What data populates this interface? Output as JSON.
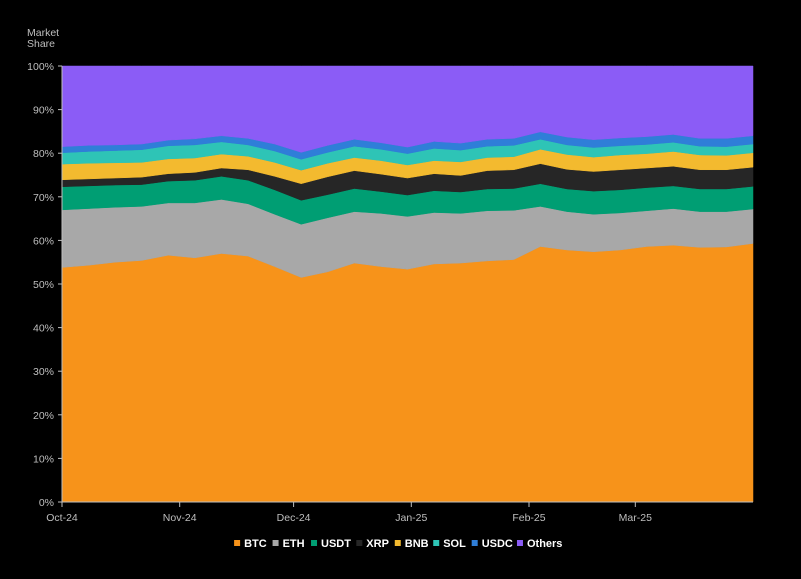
{
  "chart_data": {
    "type": "area",
    "stacked": true,
    "ylabel": "Market Share",
    "ylabel_lines": [
      "Market",
      "Share"
    ],
    "ylim": [
      0,
      100
    ],
    "yticks": [
      0,
      10,
      20,
      30,
      40,
      50,
      60,
      70,
      80,
      90,
      100
    ],
    "ytick_labels": [
      "0%",
      "10%",
      "20%",
      "30%",
      "40%",
      "50%",
      "60%",
      "70%",
      "80%",
      "90%",
      "100%"
    ],
    "x_range": [
      0,
      182
    ],
    "x_ticks": [
      {
        "label": "Oct-24",
        "day": 0
      },
      {
        "label": "Nov-24",
        "day": 31
      },
      {
        "label": "Dec-24",
        "day": 61
      },
      {
        "label": "Jan-25",
        "day": 92
      },
      {
        "label": "Feb-25",
        "day": 123
      },
      {
        "label": "Mar-25",
        "day": 151
      }
    ],
    "x_day": [
      0,
      7,
      14,
      21,
      28,
      35,
      42,
      49,
      56,
      63,
      70,
      77,
      84,
      91,
      98,
      105,
      112,
      119,
      126,
      133,
      140,
      147,
      154,
      161,
      168,
      175,
      182
    ],
    "grid": false,
    "legend_position": "bottom",
    "series": [
      {
        "name": "BTC",
        "color": "#f7931a",
        "values": [
          53.8,
          54.3,
          55.0,
          55.4,
          56.6,
          56.0,
          57.0,
          56.4,
          54.0,
          51.5,
          52.8,
          54.8,
          54.0,
          53.4,
          54.6,
          54.8,
          55.3,
          55.6,
          58.6,
          57.8,
          57.4,
          57.8,
          58.6,
          58.9,
          58.4,
          58.5,
          59.3
        ]
      },
      {
        "name": "ETH",
        "color": "#a8a8a8",
        "values": [
          13.2,
          13.0,
          12.6,
          12.4,
          12.0,
          12.6,
          12.4,
          12.0,
          12.0,
          12.2,
          12.4,
          11.8,
          12.2,
          12.1,
          11.8,
          11.4,
          11.5,
          11.3,
          9.2,
          8.8,
          8.6,
          8.5,
          8.2,
          8.4,
          8.2,
          8.1,
          7.9
        ]
      },
      {
        "name": "USDT",
        "color": "#009e73",
        "values": [
          5.3,
          5.2,
          5.1,
          5.0,
          5.0,
          5.2,
          5.3,
          5.4,
          5.6,
          5.5,
          5.3,
          5.3,
          5.0,
          4.9,
          5.0,
          4.9,
          5.0,
          5.0,
          5.2,
          5.2,
          5.3,
          5.3,
          5.3,
          5.2,
          5.2,
          5.2,
          5.2
        ]
      },
      {
        "name": "XRP",
        "color": "#262626",
        "values": [
          1.6,
          1.6,
          1.6,
          1.7,
          1.7,
          1.8,
          1.9,
          2.4,
          3.1,
          3.8,
          4.1,
          4.1,
          4.0,
          3.9,
          3.9,
          3.8,
          4.2,
          4.3,
          4.6,
          4.5,
          4.5,
          4.6,
          4.5,
          4.5,
          4.4,
          4.4,
          4.4
        ]
      },
      {
        "name": "BNB",
        "color": "#f3ba2f",
        "values": [
          3.6,
          3.6,
          3.5,
          3.4,
          3.4,
          3.3,
          3.2,
          3.1,
          3.2,
          3.1,
          3.1,
          3.0,
          3.1,
          3.0,
          3.0,
          3.1,
          3.0,
          3.0,
          3.3,
          3.4,
          3.3,
          3.4,
          3.3,
          3.4,
          3.4,
          3.3,
          3.3
        ]
      },
      {
        "name": "SOL",
        "color": "#2ec4b6",
        "values": [
          2.6,
          2.7,
          2.8,
          2.9,
          3.0,
          3.0,
          2.8,
          2.6,
          2.6,
          2.5,
          2.5,
          2.6,
          2.6,
          2.6,
          2.8,
          2.7,
          2.6,
          2.6,
          2.3,
          2.2,
          2.2,
          2.1,
          2.1,
          2.1,
          2.0,
          2.0,
          2.0
        ]
      },
      {
        "name": "USDC",
        "color": "#2f7ed8",
        "values": [
          1.4,
          1.4,
          1.3,
          1.3,
          1.3,
          1.4,
          1.4,
          1.5,
          1.6,
          1.6,
          1.6,
          1.6,
          1.5,
          1.5,
          1.6,
          1.6,
          1.6,
          1.6,
          1.7,
          1.8,
          1.8,
          1.8,
          1.8,
          1.8,
          1.8,
          1.9,
          1.9
        ]
      },
      {
        "name": "Others",
        "color": "#8b5cf6",
        "values": [
          18.5,
          18.2,
          18.1,
          17.9,
          17.0,
          16.7,
          16.0,
          16.6,
          17.9,
          19.8,
          18.2,
          16.8,
          17.6,
          18.6,
          17.3,
          17.7,
          16.8,
          16.6,
          15.1,
          16.3,
          16.9,
          16.5,
          16.2,
          15.7,
          16.6,
          16.6,
          16.0
        ]
      }
    ]
  }
}
